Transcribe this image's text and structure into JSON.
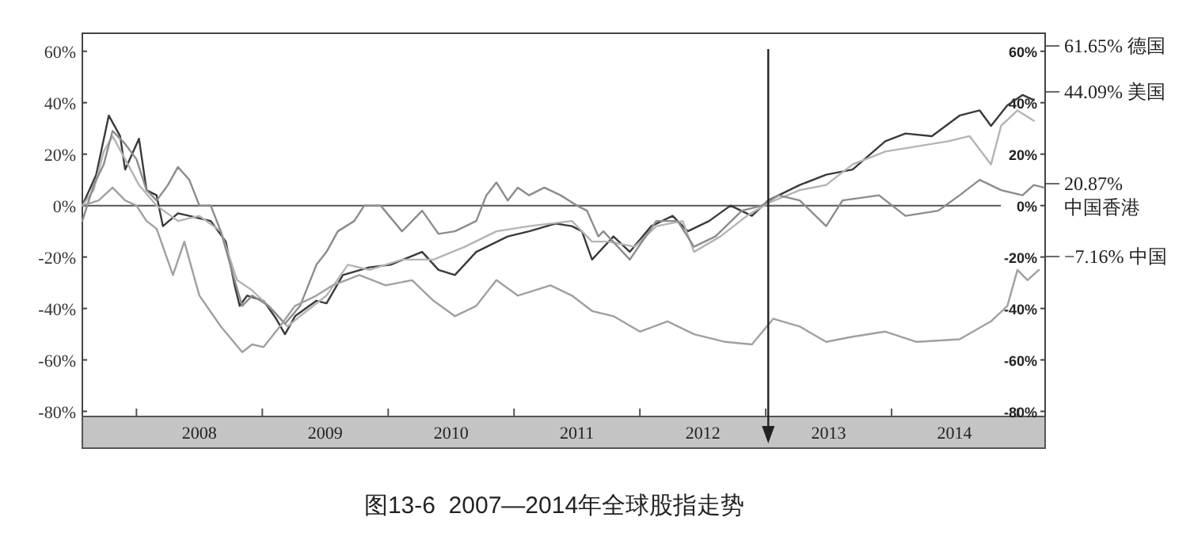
{
  "chart_data": {
    "type": "line",
    "title": "图13-6  2007—2014年全球股指走势",
    "annotations": [
      "61.65% 德国",
      "44.09% 美国",
      "20.87%\n中国香港",
      "−7.16% 中国"
    ],
    "xlim": [
      2007.57,
      2015.22
    ],
    "xticks": [
      {
        "value": 2008,
        "label": null
      },
      {
        "value": 2008.5,
        "label": "2008"
      },
      {
        "value": 2009,
        "label": null
      },
      {
        "value": 2009.5,
        "label": "2009"
      },
      {
        "value": 2010,
        "label": null
      },
      {
        "value": 2010.5,
        "label": "2010"
      },
      {
        "value": 2011,
        "label": null
      },
      {
        "value": 2011.5,
        "label": "2011"
      },
      {
        "value": 2012,
        "label": null
      },
      {
        "value": 2012.5,
        "label": "2012"
      },
      {
        "value": 2013,
        "label": null
      },
      {
        "value": 2013.5,
        "label": "2013"
      },
      {
        "value": 2014,
        "label": null
      },
      {
        "value": 2014.5,
        "label": "2014"
      },
      {
        "value": 2015,
        "label": null
      }
    ],
    "ylim": [
      -82,
      67
    ],
    "yticks": [
      {
        "value": 60,
        "label": "60%"
      },
      {
        "value": 40,
        "label": "40%"
      },
      {
        "value": 20,
        "label": "20%"
      },
      {
        "value": 0,
        "label": "0%"
      },
      {
        "value": -20,
        "label": "-20%"
      },
      {
        "value": -40,
        "label": "-40%"
      },
      {
        "value": -60,
        "label": "-60%"
      },
      {
        "value": -80,
        "label": "-80%"
      }
    ],
    "y2lim": [
      -82,
      67
    ],
    "y2ticks": [
      {
        "value": 60,
        "label": "60%"
      },
      {
        "value": 40,
        "label": "40%"
      },
      {
        "value": 20,
        "label": "20%"
      },
      {
        "value": 0,
        "label": "0%"
      },
      {
        "value": -20,
        "label": "-20%"
      },
      {
        "value": -40,
        "label": "-40%"
      },
      {
        "value": -60,
        "label": "-60%"
      },
      {
        "value": -80,
        "label": "-80%"
      }
    ],
    "ref_lines": [
      {
        "axis": "y",
        "value": 0,
        "color": "#555555",
        "line_style": "solid"
      },
      {
        "axis": "x",
        "value": 2013.02,
        "color": "#222222",
        "line_style": "solid"
      }
    ],
    "grid": false,
    "marker": "none",
    "line_style": "solid",
    "series": [
      {
        "color": "#3a3a3a",
        "x": [
          2007.57,
          2007.68,
          2007.78,
          2007.87,
          2007.91,
          2008.02,
          2008.08,
          2008.16,
          2008.21,
          2008.33,
          2008.42,
          2008.59,
          2008.71,
          2008.78,
          2008.82,
          2008.88,
          2009.01,
          2009.11,
          2009.18,
          2009.26,
          2009.43,
          2009.51,
          2009.64,
          2009.85,
          2010.02,
          2010.27,
          2010.4,
          2010.53,
          2010.7,
          2010.95,
          2011.12,
          2011.33,
          2011.46,
          2011.54,
          2011.62,
          2011.79,
          2011.92,
          2012.09,
          2012.26,
          2012.38,
          2012.55,
          2012.72,
          2012.89,
          2013.02,
          2013.27,
          2013.48,
          2013.69,
          2013.95,
          2014.11,
          2014.32,
          2014.54,
          2014.7,
          2014.79,
          2014.92,
          2015.04,
          2015.13
        ],
        "values": [
          0,
          12,
          35,
          27,
          14,
          26,
          6,
          4,
          -8,
          -3,
          -4,
          -6,
          -14,
          -31,
          -39,
          -35,
          -37,
          -44,
          -50,
          -43,
          -37,
          -38,
          -27,
          -24,
          -23,
          -18,
          -25,
          -27,
          -18,
          -12,
          -10,
          -7,
          -8,
          -10,
          -21,
          -12,
          -18,
          -8,
          -4,
          -10,
          -6,
          0,
          -4,
          2,
          8,
          12,
          14,
          25,
          28,
          27,
          35,
          37,
          31,
          39,
          43,
          41
        ]
      },
      {
        "color": "#b4b4b4",
        "x": [
          2007.57,
          2007.66,
          2007.74,
          2007.81,
          2007.91,
          2008.02,
          2008.16,
          2008.33,
          2008.5,
          2008.67,
          2008.8,
          2008.92,
          2009.09,
          2009.2,
          2009.3,
          2009.51,
          2009.68,
          2009.85,
          2010.11,
          2010.36,
          2010.61,
          2010.86,
          2011.12,
          2011.46,
          2011.62,
          2011.75,
          2011.96,
          2012.13,
          2012.34,
          2012.43,
          2012.64,
          2012.85,
          2013.02,
          2013.27,
          2013.48,
          2013.69,
          2013.95,
          2014.2,
          2014.45,
          2014.62,
          2014.79,
          2014.87,
          2015.0,
          2015.13
        ],
        "values": [
          0,
          6,
          21,
          27,
          18,
          8,
          0,
          -6,
          -4,
          -10,
          -29,
          -33,
          -41,
          -47,
          -43,
          -35,
          -23,
          -25,
          -21,
          -21,
          -16,
          -10,
          -8,
          -6,
          -14,
          -14,
          -16,
          -8,
          -6,
          -18,
          -12,
          -4,
          1,
          6,
          8,
          16,
          21,
          23,
          25,
          27,
          16,
          31,
          37,
          33
        ]
      },
      {
        "color": "#8c8c8c",
        "x": [
          2007.57,
          2007.66,
          2007.74,
          2007.81,
          2007.91,
          2008.0,
          2008.08,
          2008.16,
          2008.25,
          2008.33,
          2008.42,
          2008.5,
          2008.59,
          2008.67,
          2008.78,
          2008.84,
          2008.92,
          2009.05,
          2009.18,
          2009.3,
          2009.43,
          2009.51,
          2009.6,
          2009.73,
          2009.81,
          2009.94,
          2010.11,
          2010.27,
          2010.4,
          2010.53,
          2010.7,
          2010.78,
          2010.86,
          2010.95,
          2011.03,
          2011.12,
          2011.24,
          2011.37,
          2011.5,
          2011.58,
          2011.67,
          2011.71,
          2011.92,
          2012.13,
          2012.3,
          2012.43,
          2012.6,
          2012.81,
          2012.97,
          2013.1,
          2013.27,
          2013.48,
          2013.61,
          2013.9,
          2014.11,
          2014.37,
          2014.54,
          2014.7,
          2014.87,
          2015.04,
          2015.13,
          2015.21
        ],
        "values": [
          -6,
          8,
          16,
          29,
          24,
          18,
          6,
          2,
          8,
          15,
          10,
          0,
          0,
          -10,
          -29,
          -39,
          -35,
          -39,
          -46,
          -39,
          -23,
          -18,
          -10,
          -6,
          0,
          0,
          -10,
          -2,
          -11,
          -10,
          -6,
          4,
          9,
          2,
          7,
          4,
          7,
          4,
          0,
          -2,
          -12,
          -10,
          -21,
          -6,
          -6,
          -16,
          -12,
          -2,
          0,
          4,
          2,
          -8,
          2,
          4,
          -4,
          -2,
          4,
          10,
          6,
          4,
          8,
          7
        ]
      },
      {
        "color": "#a0a0a0",
        "x": [
          2007.57,
          2007.7,
          2007.81,
          2007.91,
          2008.0,
          2008.08,
          2008.16,
          2008.29,
          2008.38,
          2008.5,
          2008.67,
          2008.84,
          2008.92,
          2009.01,
          2009.14,
          2009.26,
          2009.43,
          2009.56,
          2009.77,
          2009.98,
          2010.19,
          2010.36,
          2010.53,
          2010.7,
          2010.86,
          2011.03,
          2011.29,
          2011.46,
          2011.62,
          2011.79,
          2012.0,
          2012.22,
          2012.43,
          2012.68,
          2012.89,
          2013.06,
          2013.27,
          2013.48,
          2013.69,
          2013.95,
          2014.2,
          2014.54,
          2014.79,
          2014.92,
          2015.0,
          2015.08,
          2015.17
        ],
        "values": [
          0,
          2,
          7,
          2,
          0,
          -6,
          -9,
          -27,
          -14,
          -35,
          -47,
          -57,
          -54,
          -55,
          -47,
          -39,
          -35,
          -31,
          -27,
          -31,
          -29,
          -37,
          -43,
          -39,
          -29,
          -35,
          -31,
          -35,
          -41,
          -43,
          -49,
          -45,
          -50,
          -53,
          -54,
          -44,
          -47,
          -53,
          -51,
          -49,
          -53,
          -52,
          -45,
          -39,
          -25,
          -29,
          -25
        ]
      }
    ]
  }
}
